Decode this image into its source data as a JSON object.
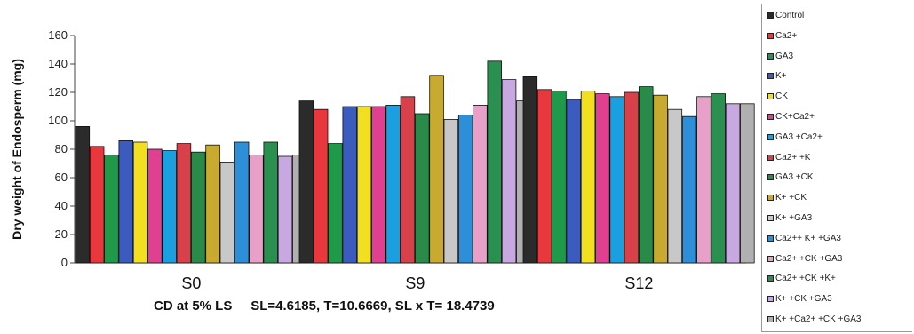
{
  "chart_data": {
    "type": "bar",
    "ylabel": "Dry weight of Endosperm (mg)",
    "xlabel": "CD at 5% LS     SL=4.6185, T=10.6669, SL x T= 18.4739",
    "ylim": [
      0,
      160
    ],
    "yticks": [
      "0",
      "20",
      "40",
      "60",
      "80",
      "100",
      "120",
      "140",
      "160"
    ],
    "grid": false,
    "legend_position": "right",
    "categories": [
      "S0",
      "S9",
      "S12"
    ],
    "series": [
      {
        "name": "Control",
        "color": "#2b2b2b",
        "values": [
          96,
          114,
          131
        ]
      },
      {
        "name": "Ca2+",
        "color": "#e8383d",
        "values": [
          82,
          108,
          122
        ]
      },
      {
        "name": "GA3",
        "color": "#1e9a4a",
        "values": [
          76,
          84,
          121
        ]
      },
      {
        "name": "K+",
        "color": "#3b5bbf",
        "values": [
          86,
          110,
          115
        ]
      },
      {
        "name": "CK",
        "color": "#f2e020",
        "values": [
          85,
          110,
          121
        ]
      },
      {
        "name": "CK+Ca2+",
        "color": "#e0408f",
        "values": [
          80,
          110,
          119
        ]
      },
      {
        "name": "GA3 +Ca2+",
        "color": "#1aa0e0",
        "values": [
          79,
          111,
          117
        ]
      },
      {
        "name": "Ca2+ +K",
        "color": "#d8404a",
        "values": [
          84,
          117,
          120
        ]
      },
      {
        "name": "GA3 +CK",
        "color": "#2a8a4a",
        "values": [
          78,
          105,
          124
        ]
      },
      {
        "name": "K+ +CK",
        "color": "#c8aa30",
        "values": [
          83,
          132,
          118
        ]
      },
      {
        "name": "K+ +GA3",
        "color": "#c8c8c8",
        "values": [
          71,
          101,
          108
        ]
      },
      {
        "name": "Ca2++ K+ +GA3",
        "color": "#2c8fd8",
        "values": [
          85,
          104,
          103
        ]
      },
      {
        "name": "Ca2+ +CK +GA3",
        "color": "#e8a0c8",
        "values": [
          76,
          111,
          117
        ]
      },
      {
        "name": "Ca2+ +CK +K+",
        "color": "#2a9050",
        "values": [
          85,
          142,
          119
        ]
      },
      {
        "name": "K+ +CK +GA3",
        "color": "#c8a8e0",
        "values": [
          75,
          129,
          112
        ]
      },
      {
        "name": "K+ +Ca2+ +CK +GA3",
        "color": "#b0b0b0",
        "values": [
          76,
          114,
          112
        ]
      }
    ]
  }
}
